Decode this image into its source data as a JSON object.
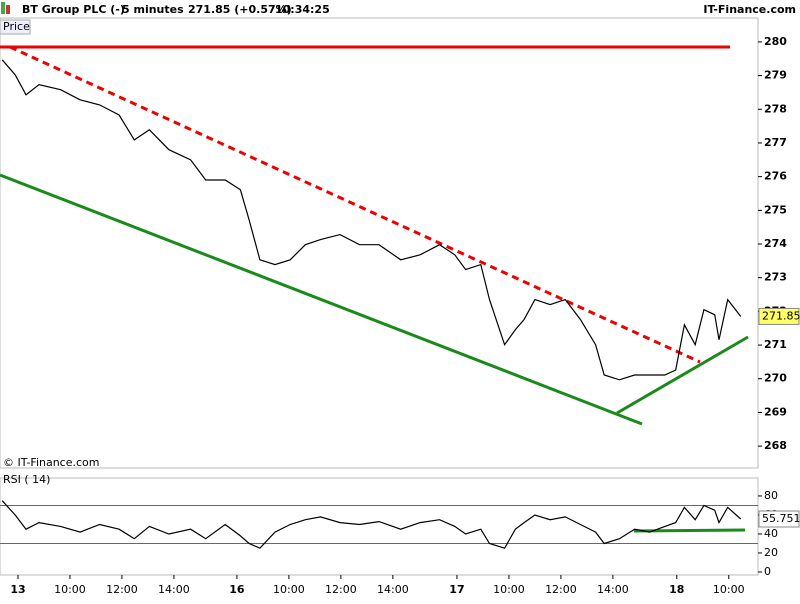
{
  "header": {
    "instrument": "BT Group PLC (-)",
    "interval": "5 minutes",
    "quote": "271.85 (+0.57%)",
    "time": "10:34:25",
    "brand": "IT-Finance.com"
  },
  "chart_data": [
    {
      "type": "line",
      "title": "Price",
      "credit": "© IT-Finance.com",
      "x": [
        1,
        7,
        12,
        18,
        28,
        37,
        46,
        55,
        62,
        69,
        78,
        88,
        95,
        104,
        111,
        115,
        120,
        127,
        134,
        141,
        148,
        157,
        166,
        175,
        185,
        194,
        203,
        210,
        215,
        222,
        226,
        233,
        238,
        242,
        247,
        254,
        261,
        268,
        275,
        279,
        286,
        293,
        300,
        307,
        312,
        316,
        321,
        325,
        330,
        332,
        336,
        342
      ],
      "series": [
        {
          "name": "BT Group PLC",
          "color": "#000000",
          "values": [
            279.47,
            279.02,
            278.43,
            278.73,
            278.58,
            278.28,
            278.13,
            277.83,
            277.09,
            277.39,
            276.8,
            276.5,
            275.9,
            275.9,
            275.61,
            274.72,
            273.53,
            273.39,
            273.53,
            273.98,
            274.13,
            274.28,
            273.98,
            273.98,
            273.53,
            273.68,
            273.98,
            273.68,
            273.24,
            273.39,
            272.35,
            271.01,
            271.46,
            271.76,
            272.35,
            272.2,
            272.35,
            271.76,
            271.01,
            270.11,
            269.97,
            270.11,
            270.11,
            270.11,
            270.26,
            271.6,
            271.01,
            272.05,
            271.9,
            271.16,
            272.35,
            271.85
          ]
        }
      ],
      "xlim": [
        0,
        350
      ],
      "ylim": [
        267.35,
        280.71
      ],
      "yticks": [
        268,
        269,
        270,
        271,
        272,
        273,
        274,
        275,
        276,
        277,
        278,
        279,
        280
      ],
      "current_color": "#ffff66"
    },
    {
      "type": "line",
      "title": "RSI ( 14)",
      "x": [
        1,
        7,
        12,
        18,
        28,
        37,
        46,
        55,
        62,
        69,
        78,
        88,
        95,
        104,
        111,
        115,
        120,
        127,
        134,
        141,
        148,
        157,
        166,
        175,
        185,
        194,
        203,
        210,
        215,
        222,
        226,
        233,
        238,
        242,
        247,
        254,
        261,
        268,
        275,
        279,
        286,
        293,
        300,
        307,
        312,
        316,
        321,
        325,
        330,
        332,
        336,
        342
      ],
      "series": [
        {
          "name": "RSI",
          "color": "#000000",
          "values": [
            75,
            60,
            45,
            52,
            48,
            42,
            50,
            45,
            35,
            48,
            40,
            45,
            35,
            50,
            38,
            30,
            25,
            42,
            50,
            55,
            58,
            52,
            50,
            53,
            45,
            52,
            55,
            48,
            40,
            45,
            30,
            25,
            45,
            52,
            60,
            55,
            58,
            50,
            42,
            30,
            35,
            45,
            42,
            48,
            52,
            68,
            55,
            70,
            65,
            52,
            68,
            55.751
          ]
        }
      ],
      "xlim": [
        0,
        350
      ],
      "ylim": [
        -3.2,
        98.9
      ],
      "yticks": [
        0,
        20,
        40,
        60,
        80
      ],
      "levels": [
        30,
        70
      ],
      "level_color": "#6060a0",
      "xticks": [
        {
          "value": 8.3,
          "label": "13"
        },
        {
          "value": 32.3,
          "label": "10:00"
        },
        {
          "value": 56.3,
          "label": "12:00"
        },
        {
          "value": 80.3,
          "label": "14:00"
        },
        {
          "value": 109.4,
          "label": "16"
        },
        {
          "value": 133.4,
          "label": "10:00"
        },
        {
          "value": 157.4,
          "label": "12:00"
        },
        {
          "value": 181.4,
          "label": "14:00"
        },
        {
          "value": 211,
          "label": "17"
        },
        {
          "value": 235,
          "label": "10:00"
        },
        {
          "value": 259,
          "label": "12:00"
        },
        {
          "value": 283,
          "label": "14:00"
        },
        {
          "value": 312.5,
          "label": "18"
        },
        {
          "value": 336.5,
          "label": "10:00"
        }
      ]
    }
  ]
}
